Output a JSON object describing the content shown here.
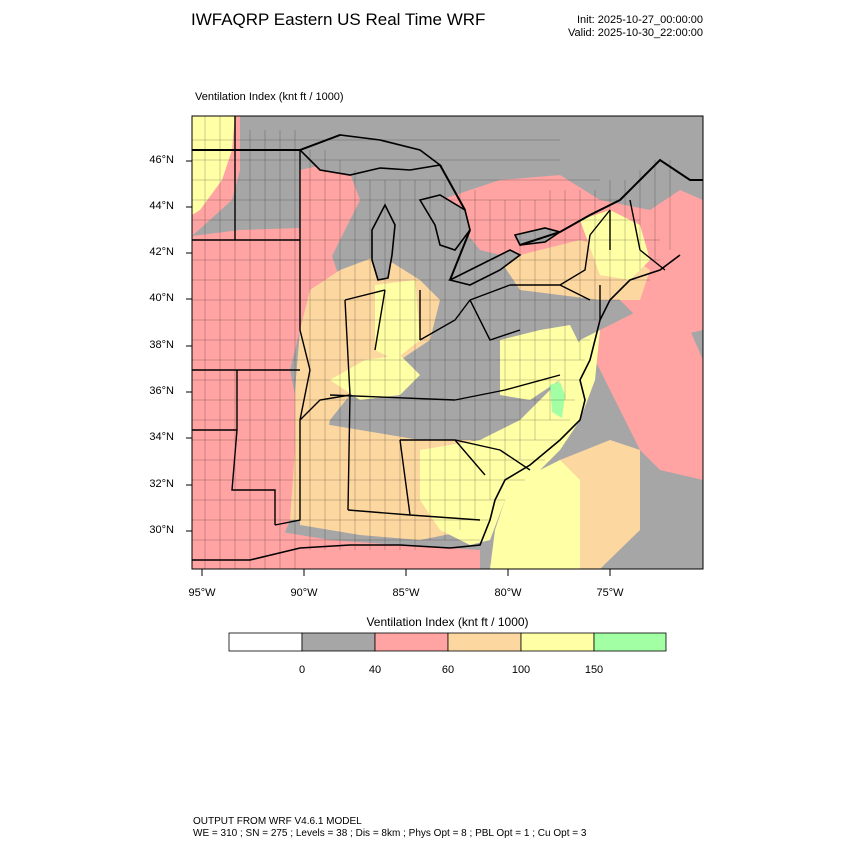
{
  "header": {
    "title": "IWFAQRP Eastern US Real Time WRF",
    "init": "Init: 2025-10-27_00:00:00",
    "valid": "Valid: 2025-10-30_22:00:00"
  },
  "map": {
    "label": "Ventilation Index   (knt ft / 1000)",
    "lat_labels": [
      "46°N",
      "44°N",
      "42°N",
      "40°N",
      "38°N",
      "36°N",
      "34°N",
      "32°N",
      "30°N"
    ],
    "lon_labels": [
      "95°W",
      "90°W",
      "85°W",
      "80°W",
      "75°W"
    ],
    "colors": {
      "gray": "#a6a6a6",
      "pink": "#ffa3a3",
      "orange": "#fdd7a0",
      "yellow": "#ffffa6",
      "green": "#a3ffa3",
      "water": "#a6a6a6"
    }
  },
  "legend": {
    "title": "Ventilation Index  (knt ft / 1000)",
    "ticks": [
      "0",
      "40",
      "60",
      "100",
      "150"
    ],
    "bins": [
      {
        "color": "#ffffff"
      },
      {
        "color": "#a6a6a6"
      },
      {
        "color": "#ffa3a3"
      },
      {
        "color": "#fdd7a0"
      },
      {
        "color": "#ffffa6"
      },
      {
        "color": "#a3ffa3"
      }
    ]
  },
  "footer": {
    "line1": "OUTPUT FROM WRF V4.6.1 MODEL",
    "line2": "WE = 310 ; SN = 275 ; Levels = 38 ; Dis = 8km ; Phys Opt = 8 ; PBL Opt = 1 ; Cu Opt = 3"
  }
}
